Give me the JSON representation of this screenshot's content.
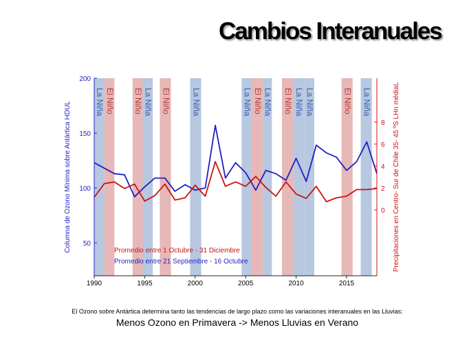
{
  "title": "Cambios Interanuales",
  "chart_data": {
    "type": "line",
    "x_range": [
      1990,
      2018
    ],
    "x_ticks": [
      1990,
      1995,
      2000,
      2005,
      2010,
      2015
    ],
    "grid": false,
    "y_left": {
      "label": "Columna de Ozono Mínima sobre Antártica HDUL",
      "range": [
        20,
        200
      ],
      "ticks": [
        50,
        100,
        150,
        200
      ],
      "color": "#1f1fbf"
    },
    "y_right": {
      "label": "Precipitaciones en Centro- Sur de Chile 35- 45 ºS LHn médiaL",
      "range": [
        -6,
        12
      ],
      "ticks": [
        0,
        2,
        4,
        6,
        8
      ],
      "color": "#cc1111"
    },
    "bands": [
      {
        "start": 1990.0,
        "end": 1991.0,
        "label": "La Niña",
        "type": "nina"
      },
      {
        "start": 1991.0,
        "end": 1992.0,
        "label": "El Niño",
        "type": "nino"
      },
      {
        "start": 1993.8,
        "end": 1994.8,
        "label": "El Niño",
        "type": "nino"
      },
      {
        "start": 1994.8,
        "end": 1995.8,
        "label": "La Niña",
        "type": "nina"
      },
      {
        "start": 1996.5,
        "end": 1997.6,
        "label": "El Niño",
        "type": "nino"
      },
      {
        "start": 1999.5,
        "end": 2000.6,
        "label": "La Niña",
        "type": "nina"
      },
      {
        "start": 2004.6,
        "end": 2005.6,
        "label": "La Niña",
        "type": "nina"
      },
      {
        "start": 2005.6,
        "end": 2006.7,
        "label": "El Niño",
        "type": "nino"
      },
      {
        "start": 2006.7,
        "end": 2007.6,
        "label": "La Niña",
        "type": "nina"
      },
      {
        "start": 2008.6,
        "end": 2009.7,
        "label": "El Niño",
        "type": "nino"
      },
      {
        "start": 2009.7,
        "end": 2010.8,
        "label": "La Niña",
        "type": "nina"
      },
      {
        "start": 2010.8,
        "end": 2011.8,
        "label": "La Niña",
        "type": "nina"
      },
      {
        "start": 2014.5,
        "end": 2015.6,
        "label": "El Niño",
        "type": "nino"
      },
      {
        "start": 2016.4,
        "end": 2017.5,
        "label": "La Niña",
        "type": "nina"
      }
    ],
    "band_colors": {
      "nina": "#b7c8e0",
      "nino": "#e7b8b8",
      "nina_text": "#3b5ea8",
      "nino_text": "#b23b3b"
    },
    "series": [
      {
        "name": "Promedio entre 21 Septiembre -  16 Octubre",
        "axis": "left",
        "color": "#1f1fbf",
        "x": [
          1990,
          1991,
          1992,
          1993,
          1994,
          1995,
          1996,
          1997,
          1998,
          1999,
          2000,
          2001,
          2002,
          2003,
          2004,
          2005,
          2006,
          2007,
          2008,
          2009,
          2010,
          2011,
          2012,
          2013,
          2014,
          2015,
          2016,
          2017,
          2018
        ],
        "values": [
          123,
          118,
          113,
          112,
          92,
          101,
          109,
          109,
          97,
          103,
          98,
          100,
          157,
          109,
          123,
          114,
          98,
          116,
          113,
          107,
          127,
          106,
          139,
          132,
          128,
          116,
          124,
          142,
          113
        ]
      },
      {
        "name": "Promedio entre 1 Octubre -  31 Diciembre",
        "axis": "right",
        "color": "#cc1111",
        "x": [
          1990,
          1991,
          1992,
          1993,
          1994,
          1995,
          1996,
          1997,
          1998,
          1999,
          2000,
          2001,
          2002,
          2003,
          2004,
          2005,
          2006,
          2007,
          2008,
          2009,
          2010,
          2011,
          2012,
          2013,
          2014,
          2015,
          2016,
          2017,
          2018
        ],
        "values": [
          1.15,
          2.4,
          2.55,
          1.95,
          2.35,
          0.8,
          1.3,
          2.35,
          0.9,
          1.1,
          2.25,
          1.25,
          4.4,
          2.15,
          2.55,
          2.15,
          3.05,
          2.05,
          1.25,
          2.55,
          1.45,
          1.05,
          2.15,
          0.75,
          1.1,
          1.25,
          1.85,
          1.85,
          1.95
        ]
      }
    ]
  },
  "caption_small": "El Ozono sobre Antártica determina tanto las tendencias de largo plazo como las variaciones interanuales en las Lluvias:",
  "caption_big": "Menos Ozono en Primavera -> Menos Lluvias en Verano"
}
